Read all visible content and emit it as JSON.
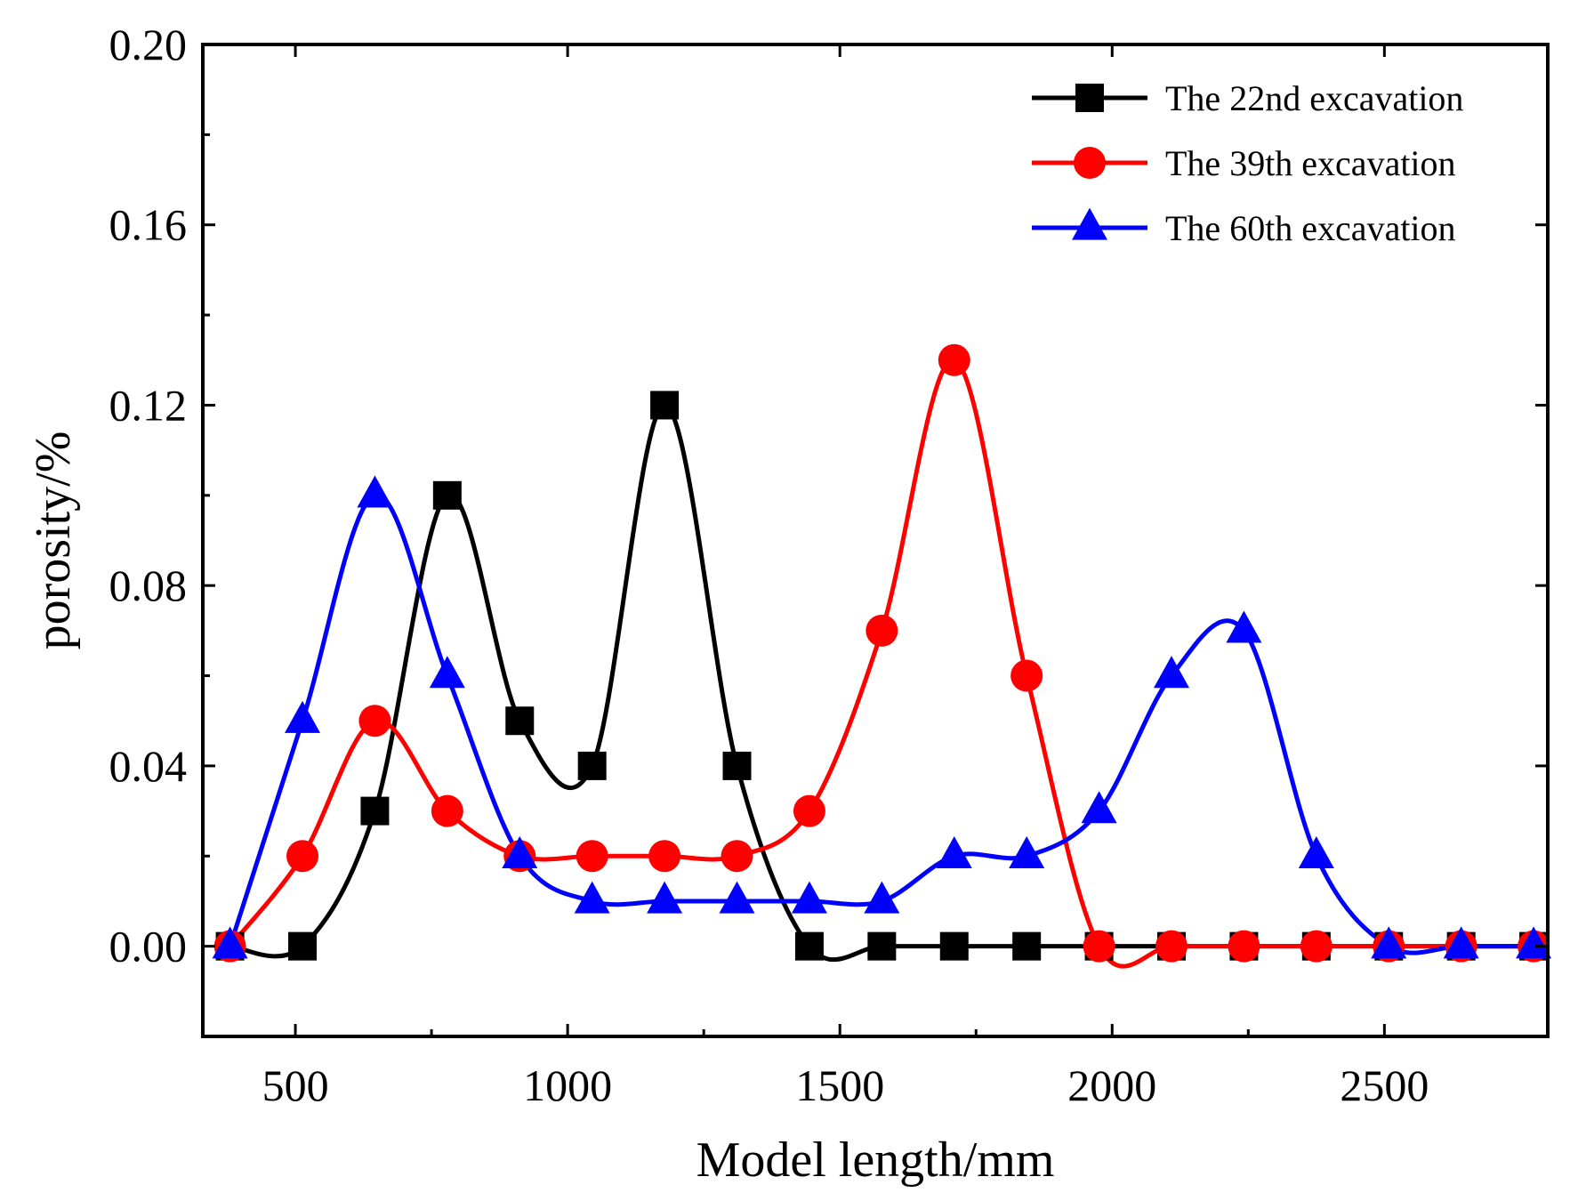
{
  "chart_data": {
    "type": "line",
    "title": "",
    "xlabel": "Model length/mm",
    "ylabel": "porosity/%",
    "xlim": [
      330,
      2800
    ],
    "ylim": [
      -0.02,
      0.2
    ],
    "x_ticks": [
      500,
      1000,
      1500,
      2000,
      2500
    ],
    "x_tick_labels": [
      "500",
      "1000",
      "1500",
      "2000",
      "2500"
    ],
    "y_ticks": [
      0,
      0.04,
      0.08,
      0.12,
      0.16,
      0.2
    ],
    "y_tick_labels": [
      "0.00",
      "0.04",
      "0.08",
      "0.12",
      "0.16",
      "0.20"
    ],
    "grid": false,
    "legend_position": "top-right",
    "x": [
      380,
      513,
      646,
      779,
      912,
      1045,
      1178,
      1311,
      1444,
      1577,
      1710,
      1843,
      1976,
      2109,
      2242,
      2375,
      2508,
      2641,
      2774
    ],
    "series": [
      {
        "name": "The 22nd excavation",
        "color": "#000000",
        "marker": "square",
        "values": [
          0,
          0,
          0.03,
          0.1,
          0.05,
          0.04,
          0.12,
          0.04,
          0,
          0,
          0,
          0,
          0,
          0,
          0,
          0,
          0,
          0,
          0
        ]
      },
      {
        "name": "The 39th excavation",
        "color": "#ff0000",
        "marker": "circle",
        "values": [
          0,
          0.02,
          0.05,
          0.03,
          0.02,
          0.02,
          0.02,
          0.02,
          0.03,
          0.07,
          0.13,
          0.06,
          0,
          0,
          0,
          0,
          0,
          0,
          0
        ]
      },
      {
        "name": "The 60th excavation",
        "color": "#0000ff",
        "marker": "triangle",
        "values": [
          0,
          0.05,
          0.1,
          0.06,
          0.02,
          0.01,
          0.01,
          0.01,
          0.01,
          0.01,
          0.02,
          0.02,
          0.03,
          0.06,
          0.07,
          0.02,
          0,
          0,
          0
        ]
      }
    ]
  }
}
